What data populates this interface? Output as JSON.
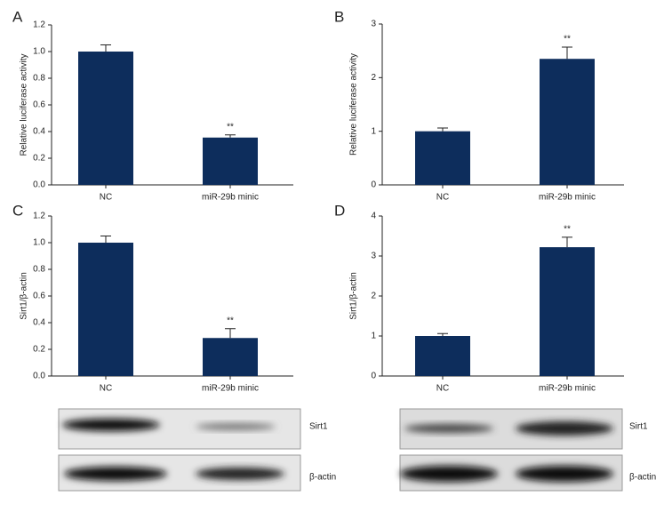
{
  "chart_data": [
    {
      "type": "bar",
      "label": "A",
      "y_label": "Relative luciferase activity",
      "categories": [
        "NC",
        "miR-29b minic"
      ],
      "values": [
        1.0,
        0.355
      ],
      "errors": [
        0.05,
        0.02
      ],
      "color": "#0d2d5c",
      "ylim": [
        0,
        1.2
      ],
      "yticks": [
        {
          "value": 0,
          "label": "0.0"
        },
        0.2,
        0.4,
        0.6,
        0.8,
        {
          "value": 1,
          "label": "1.0"
        },
        1.2
      ],
      "annotations": [
        {
          "text": "**",
          "index": 1
        }
      ]
    },
    {
      "type": "bar",
      "label": "B",
      "y_label": "Relative luciferase activity",
      "categories": [
        "NC",
        "miR-29b minic"
      ],
      "values": [
        1.0,
        2.35
      ],
      "errors": [
        0.06,
        0.22
      ],
      "color": "#0d2d5c",
      "ylim": [
        0,
        3
      ],
      "yticks": [
        0,
        1,
        2,
        3
      ],
      "annotations": [
        {
          "text": "**",
          "index": 1
        }
      ]
    },
    {
      "type": "bar",
      "label": "C",
      "y_label": "Sirt1/β-actin",
      "categories": [
        "NC",
        "miR-29b minic"
      ],
      "values": [
        1.0,
        0.285
      ],
      "errors": [
        0.05,
        0.07
      ],
      "color": "#0d2d5c",
      "ylim": [
        0,
        1.2
      ],
      "yticks": [
        {
          "value": 0,
          "label": "0.0"
        },
        0.2,
        0.4,
        0.6,
        0.8,
        {
          "value": 1,
          "label": "1.0"
        },
        1.2
      ],
      "annotations": [
        {
          "text": "**",
          "index": 1
        }
      ],
      "blot_labels": [
        "Sirt1",
        "β-actin"
      ]
    },
    {
      "type": "bar",
      "label": "D",
      "y_label": "Sirt1/β-actin",
      "categories": [
        "NC",
        "miR-29b minic"
      ],
      "values": [
        1.0,
        3.22
      ],
      "errors": [
        0.06,
        0.25
      ],
      "color": "#0d2d5c",
      "ylim": [
        0,
        4
      ],
      "yticks": [
        0,
        1,
        2,
        3,
        4
      ],
      "annotations": [
        {
          "text": "**",
          "index": 1
        }
      ],
      "blot_labels": [
        "Sirt1",
        "β-actin"
      ]
    }
  ]
}
